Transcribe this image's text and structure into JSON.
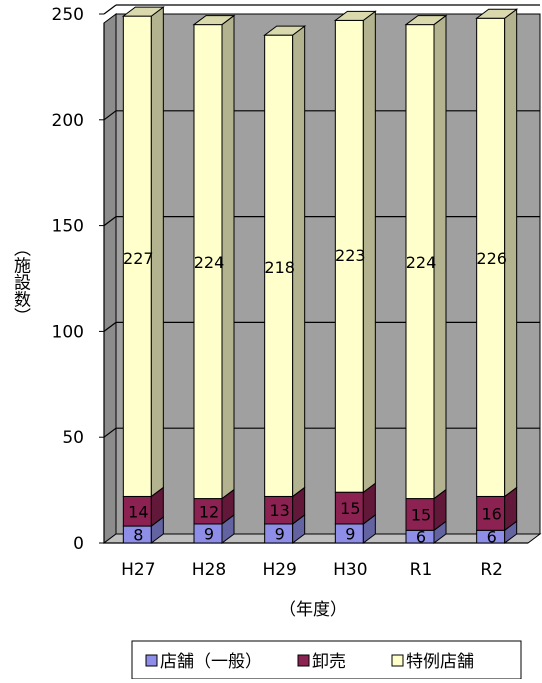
{
  "chart_data": {
    "type": "bar",
    "stacked": true,
    "style": "3d",
    "categories": [
      "H27",
      "H28",
      "H29",
      "H30",
      "R1",
      "R2"
    ],
    "series": [
      {
        "name": "店舗（一般）",
        "values": [
          8,
          9,
          9,
          9,
          6,
          6
        ],
        "color": "#8e8ee8"
      },
      {
        "name": "卸売",
        "values": [
          14,
          12,
          13,
          15,
          15,
          16
        ],
        "color": "#8b2252"
      },
      {
        "name": "特例店舗",
        "values": [
          227,
          224,
          218,
          223,
          224,
          226
        ],
        "color": "#ffffcc"
      }
    ],
    "xlabel": "（年度）",
    "ylabel": "（施設数）",
    "ylim": [
      0,
      250
    ],
    "yticks": [
      "0",
      "50",
      "100",
      "150",
      "200",
      "250"
    ],
    "grid": true,
    "plot_background": "#a0a0a0",
    "legend_position": "bottom"
  }
}
